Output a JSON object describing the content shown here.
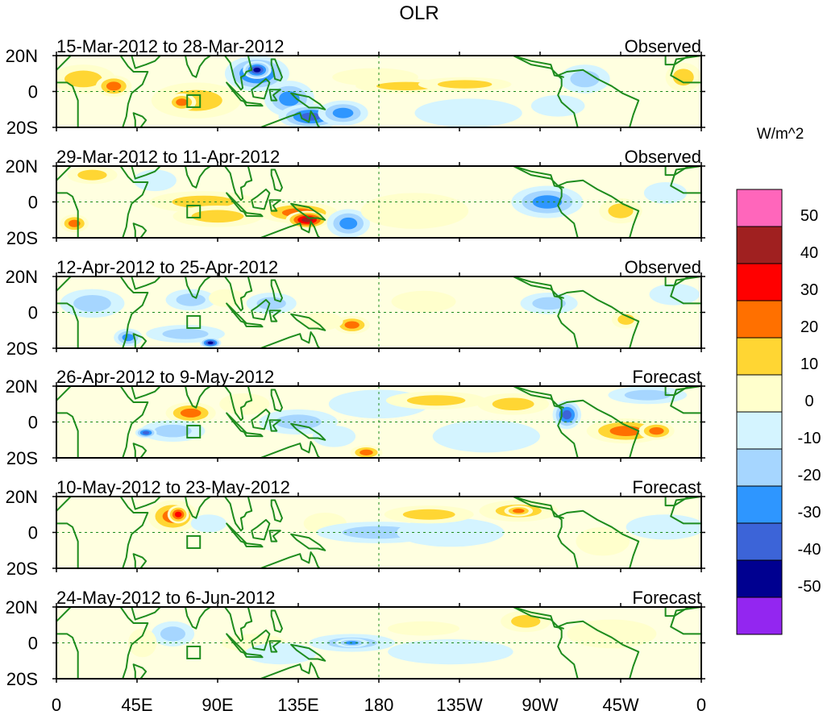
{
  "figure": {
    "title": "OLR",
    "units_label": "W/m^2",
    "lat_tick_labels": [
      "20N",
      "0",
      "20S"
    ],
    "lon_tick_labels": [
      "0",
      "45E",
      "90E",
      "135E",
      "180",
      "135W",
      "90W",
      "45W",
      "0"
    ],
    "lon_values_deg_east": [
      0,
      45,
      90,
      135,
      180,
      225,
      270,
      315,
      360
    ],
    "lat_range": [
      -20,
      20
    ],
    "lon_range": [
      0,
      360
    ]
  },
  "panels": [
    {
      "date_range": "15-Mar-2012 to 28-Mar-2012",
      "type": "Observed"
    },
    {
      "date_range": "29-Mar-2012 to 11-Apr-2012",
      "type": "Observed"
    },
    {
      "date_range": "12-Apr-2012 to 25-Apr-2012",
      "type": "Observed"
    },
    {
      "date_range": "26-Apr-2012 to 9-May-2012",
      "type": "Forecast"
    },
    {
      "date_range": "10-May-2012 to 23-May-2012",
      "type": "Forecast"
    },
    {
      "date_range": "24-May-2012 to 6-Jun-2012",
      "type": "Forecast"
    }
  ],
  "colorbar": {
    "colors": [
      "#ff66bb",
      "#a02020",
      "#ff0000",
      "#ff7000",
      "#ffd633",
      "#ffffcc",
      "#d4f4ff",
      "#a6d6ff",
      "#2e96ff",
      "#3c64d8",
      "#000090",
      "#9326f0"
    ],
    "tick_labels": [
      "50",
      "40",
      "30",
      "20",
      "10",
      "0",
      "-10",
      "-20",
      "-30",
      "-40",
      "-50"
    ]
  },
  "style_colors": {
    "coast": "#1e8c1e",
    "equator": "#1e8c1e",
    "frame": "#000000"
  },
  "anomaly_blobs": [
    [
      {
        "lon": 15,
        "lat": 7,
        "rx": 18,
        "ry": 8,
        "v": 22
      },
      {
        "lon": 32,
        "lat": 3,
        "rx": 10,
        "ry": 6,
        "v": 32
      },
      {
        "lon": 78,
        "lat": -5,
        "rx": 25,
        "ry": 10,
        "v": 24
      },
      {
        "lon": 70,
        "lat": -6,
        "rx": 8,
        "ry": 5,
        "v": 32
      },
      {
        "lon": 112,
        "lat": 10,
        "rx": 18,
        "ry": 10,
        "v": -35
      },
      {
        "lon": 112,
        "lat": 12,
        "rx": 8,
        "ry": 5,
        "v": -50
      },
      {
        "lon": 130,
        "lat": -4,
        "rx": 14,
        "ry": 10,
        "v": -28
      },
      {
        "lon": 142,
        "lat": -14,
        "rx": 18,
        "ry": 7,
        "v": -42
      },
      {
        "lon": 178,
        "lat": 8,
        "rx": 24,
        "ry": 5,
        "v": 14
      },
      {
        "lon": 195,
        "lat": 3,
        "rx": 28,
        "ry": 4,
        "v": 22
      },
      {
        "lon": 228,
        "lat": 4,
        "rx": 26,
        "ry": 4,
        "v": 18
      },
      {
        "lon": 160,
        "lat": -12,
        "rx": 14,
        "ry": 7,
        "v": -30
      },
      {
        "lon": 295,
        "lat": 7,
        "rx": 14,
        "ry": 8,
        "v": -24
      },
      {
        "lon": 280,
        "lat": -8,
        "rx": 15,
        "ry": 6,
        "v": -12
      },
      {
        "lon": 350,
        "lat": 8,
        "rx": 10,
        "ry": 8,
        "v": 18
      },
      {
        "lon": 230,
        "lat": -12,
        "rx": 30,
        "ry": 8,
        "v": -8
      }
    ],
    [
      {
        "lon": 20,
        "lat": 15,
        "rx": 14,
        "ry": 5,
        "v": 18
      },
      {
        "lon": 10,
        "lat": -12,
        "rx": 8,
        "ry": 5,
        "v": 28
      },
      {
        "lon": 82,
        "lat": 0,
        "rx": 30,
        "ry": 6,
        "v": 22
      },
      {
        "lon": 90,
        "lat": -8,
        "rx": 25,
        "ry": 6,
        "v": 18
      },
      {
        "lon": 135,
        "lat": -6,
        "rx": 22,
        "ry": 6,
        "v": 28
      },
      {
        "lon": 140,
        "lat": -10,
        "rx": 12,
        "ry": 5,
        "v": 45
      },
      {
        "lon": 163,
        "lat": -12,
        "rx": 12,
        "ry": 8,
        "v": -30
      },
      {
        "lon": 274,
        "lat": 0,
        "rx": 20,
        "ry": 9,
        "v": -28
      },
      {
        "lon": 315,
        "lat": -5,
        "rx": 12,
        "ry": 7,
        "v": 20
      },
      {
        "lon": 340,
        "lat": 5,
        "rx": 12,
        "ry": 6,
        "v": -12
      },
      {
        "lon": 200,
        "lat": -5,
        "rx": 30,
        "ry": 10,
        "v": 6
      },
      {
        "lon": 55,
        "lat": 12,
        "rx": 12,
        "ry": 6,
        "v": -12
      }
    ],
    [
      {
        "lon": 20,
        "lat": 5,
        "rx": 18,
        "ry": 8,
        "v": -16
      },
      {
        "lon": 40,
        "lat": -14,
        "rx": 8,
        "ry": 5,
        "v": -30
      },
      {
        "lon": 75,
        "lat": 7,
        "rx": 14,
        "ry": 6,
        "v": -22
      },
      {
        "lon": 72,
        "lat": -12,
        "rx": 22,
        "ry": 5,
        "v": -22
      },
      {
        "lon": 86,
        "lat": -17,
        "rx": 6,
        "ry": 3,
        "v": -45
      },
      {
        "lon": 95,
        "lat": 8,
        "rx": 10,
        "ry": 5,
        "v": 14
      },
      {
        "lon": 120,
        "lat": 5,
        "rx": 14,
        "ry": 6,
        "v": -18
      },
      {
        "lon": 165,
        "lat": -7,
        "rx": 10,
        "ry": 5,
        "v": 30
      },
      {
        "lon": 148,
        "lat": -5,
        "rx": 12,
        "ry": 5,
        "v": 14
      },
      {
        "lon": 275,
        "lat": 5,
        "rx": 16,
        "ry": 6,
        "v": -16
      },
      {
        "lon": 318,
        "lat": -4,
        "rx": 8,
        "ry": 5,
        "v": 24
      },
      {
        "lon": 205,
        "lat": 6,
        "rx": 18,
        "ry": 6,
        "v": 10
      },
      {
        "lon": 345,
        "lat": 10,
        "rx": 14,
        "ry": 6,
        "v": -14
      }
    ],
    [
      {
        "lon": 75,
        "lat": 5,
        "rx": 14,
        "ry": 6,
        "v": 26
      },
      {
        "lon": 65,
        "lat": -5,
        "rx": 18,
        "ry": 6,
        "v": -22
      },
      {
        "lon": 50,
        "lat": -6,
        "rx": 6,
        "ry": 3,
        "v": -42
      },
      {
        "lon": 105,
        "lat": 10,
        "rx": 14,
        "ry": 6,
        "v": 14
      },
      {
        "lon": 135,
        "lat": 0,
        "rx": 22,
        "ry": 7,
        "v": -22
      },
      {
        "lon": 155,
        "lat": -8,
        "rx": 12,
        "ry": 6,
        "v": -14
      },
      {
        "lon": 173,
        "lat": -17,
        "rx": 9,
        "ry": 4,
        "v": 30
      },
      {
        "lon": 180,
        "lat": 10,
        "rx": 28,
        "ry": 8,
        "v": -10
      },
      {
        "lon": 212,
        "lat": 12,
        "rx": 28,
        "ry": 5,
        "v": 22
      },
      {
        "lon": 255,
        "lat": 10,
        "rx": 20,
        "ry": 6,
        "v": 20
      },
      {
        "lon": 285,
        "lat": 4,
        "rx": 8,
        "ry": 8,
        "v": -42
      },
      {
        "lon": 318,
        "lat": -5,
        "rx": 22,
        "ry": 7,
        "v": 28
      },
      {
        "lon": 335,
        "lat": -5,
        "rx": 10,
        "ry": 5,
        "v": 32
      },
      {
        "lon": 330,
        "lat": 15,
        "rx": 22,
        "ry": 5,
        "v": -16
      },
      {
        "lon": 240,
        "lat": -8,
        "rx": 30,
        "ry": 9,
        "v": -8
      }
    ],
    [
      {
        "lon": 65,
        "lat": 9,
        "rx": 14,
        "ry": 9,
        "v": 26
      },
      {
        "lon": 68,
        "lat": 10,
        "rx": 6,
        "ry": 5,
        "v": 38
      },
      {
        "lon": 85,
        "lat": 5,
        "rx": 10,
        "ry": 5,
        "v": -12
      },
      {
        "lon": 150,
        "lat": 5,
        "rx": 12,
        "ry": 6,
        "v": 12
      },
      {
        "lon": 180,
        "lat": 0,
        "rx": 35,
        "ry": 6,
        "v": -20
      },
      {
        "lon": 220,
        "lat": 0,
        "rx": 30,
        "ry": 8,
        "v": -12
      },
      {
        "lon": 208,
        "lat": 10,
        "rx": 25,
        "ry": 5,
        "v": 18
      },
      {
        "lon": 258,
        "lat": 12,
        "rx": 22,
        "ry": 6,
        "v": 20
      },
      {
        "lon": 258,
        "lat": 12,
        "rx": 8,
        "ry": 3,
        "v": 32
      },
      {
        "lon": 305,
        "lat": -5,
        "rx": 15,
        "ry": 8,
        "v": 10
      },
      {
        "lon": 340,
        "lat": 3,
        "rx": 22,
        "ry": 7,
        "v": -12
      }
    ],
    [
      {
        "lon": 65,
        "lat": 5,
        "rx": 12,
        "ry": 7,
        "v": -22
      },
      {
        "lon": 48,
        "lat": 0,
        "rx": 8,
        "ry": 8,
        "v": 14
      },
      {
        "lon": 110,
        "lat": 0,
        "rx": 18,
        "ry": 5,
        "v": 10
      },
      {
        "lon": 125,
        "lat": -6,
        "rx": 20,
        "ry": 6,
        "v": -12
      },
      {
        "lon": 165,
        "lat": 0,
        "rx": 24,
        "ry": 5,
        "v": -22
      },
      {
        "lon": 165,
        "lat": 0,
        "rx": 9,
        "ry": 2.5,
        "v": -32
      },
      {
        "lon": 205,
        "lat": 8,
        "rx": 20,
        "ry": 4,
        "v": 14
      },
      {
        "lon": 262,
        "lat": 12,
        "rx": 14,
        "ry": 6,
        "v": 24
      },
      {
        "lon": 310,
        "lat": 5,
        "rx": 25,
        "ry": 8,
        "v": 10
      },
      {
        "lon": 220,
        "lat": -5,
        "rx": 35,
        "ry": 7,
        "v": -8
      }
    ]
  ]
}
